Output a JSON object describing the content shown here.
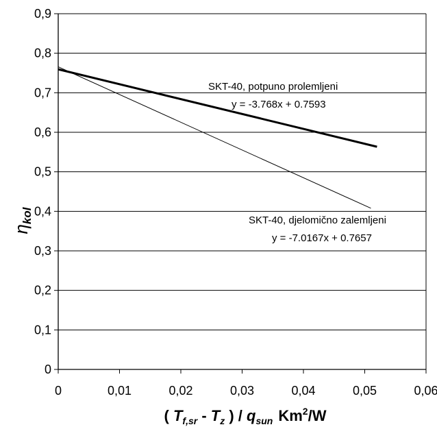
{
  "chart_data": {
    "type": "line",
    "x_range": [
      0,
      0.06
    ],
    "y_range": [
      0,
      0.9
    ],
    "x_ticks": [
      "0",
      "0,01",
      "0,02",
      "0,03",
      "0,04",
      "0,05",
      "0,06"
    ],
    "y_ticks": [
      "0",
      "0,1",
      "0,2",
      "0,3",
      "0,4",
      "0,5",
      "0,6",
      "0,7",
      "0,8",
      "0,9"
    ],
    "x_tick_values": [
      0,
      0.01,
      0.02,
      0.03,
      0.04,
      0.05,
      0.06
    ],
    "y_tick_values": [
      0,
      0.1,
      0.2,
      0.3,
      0.4,
      0.5,
      0.6,
      0.7,
      0.8,
      0.9
    ],
    "grid": "horizontal",
    "legend": "none",
    "xlabel": {
      "open": "( ",
      "tf": "T",
      "tf_sub": "f,sr",
      "minus": " - ",
      "tz": "T",
      "tz_sub": "z",
      "div": " ) / ",
      "q": "q",
      "q_sub": "sun",
      "unit": "Km",
      "unit_sup": "2",
      "unit_tail": "/W"
    },
    "ylabel": {
      "symbol": "η",
      "sub": "kol"
    },
    "series": [
      {
        "name": "SKT-40, potpuno prolemljeni",
        "equation": "y = -3.768x + 0.7593",
        "x": [
          0,
          0.052
        ],
        "y": [
          0.7593,
          0.5634
        ],
        "color": "#000000",
        "weight": "thick"
      },
      {
        "name": "SKT-40, djelomično zalemljeni",
        "equation": "y = -7.0167x + 0.7657",
        "x": [
          0,
          0.051
        ],
        "y": [
          0.7657,
          0.4078
        ],
        "color": "#000000",
        "weight": "thin"
      }
    ]
  }
}
